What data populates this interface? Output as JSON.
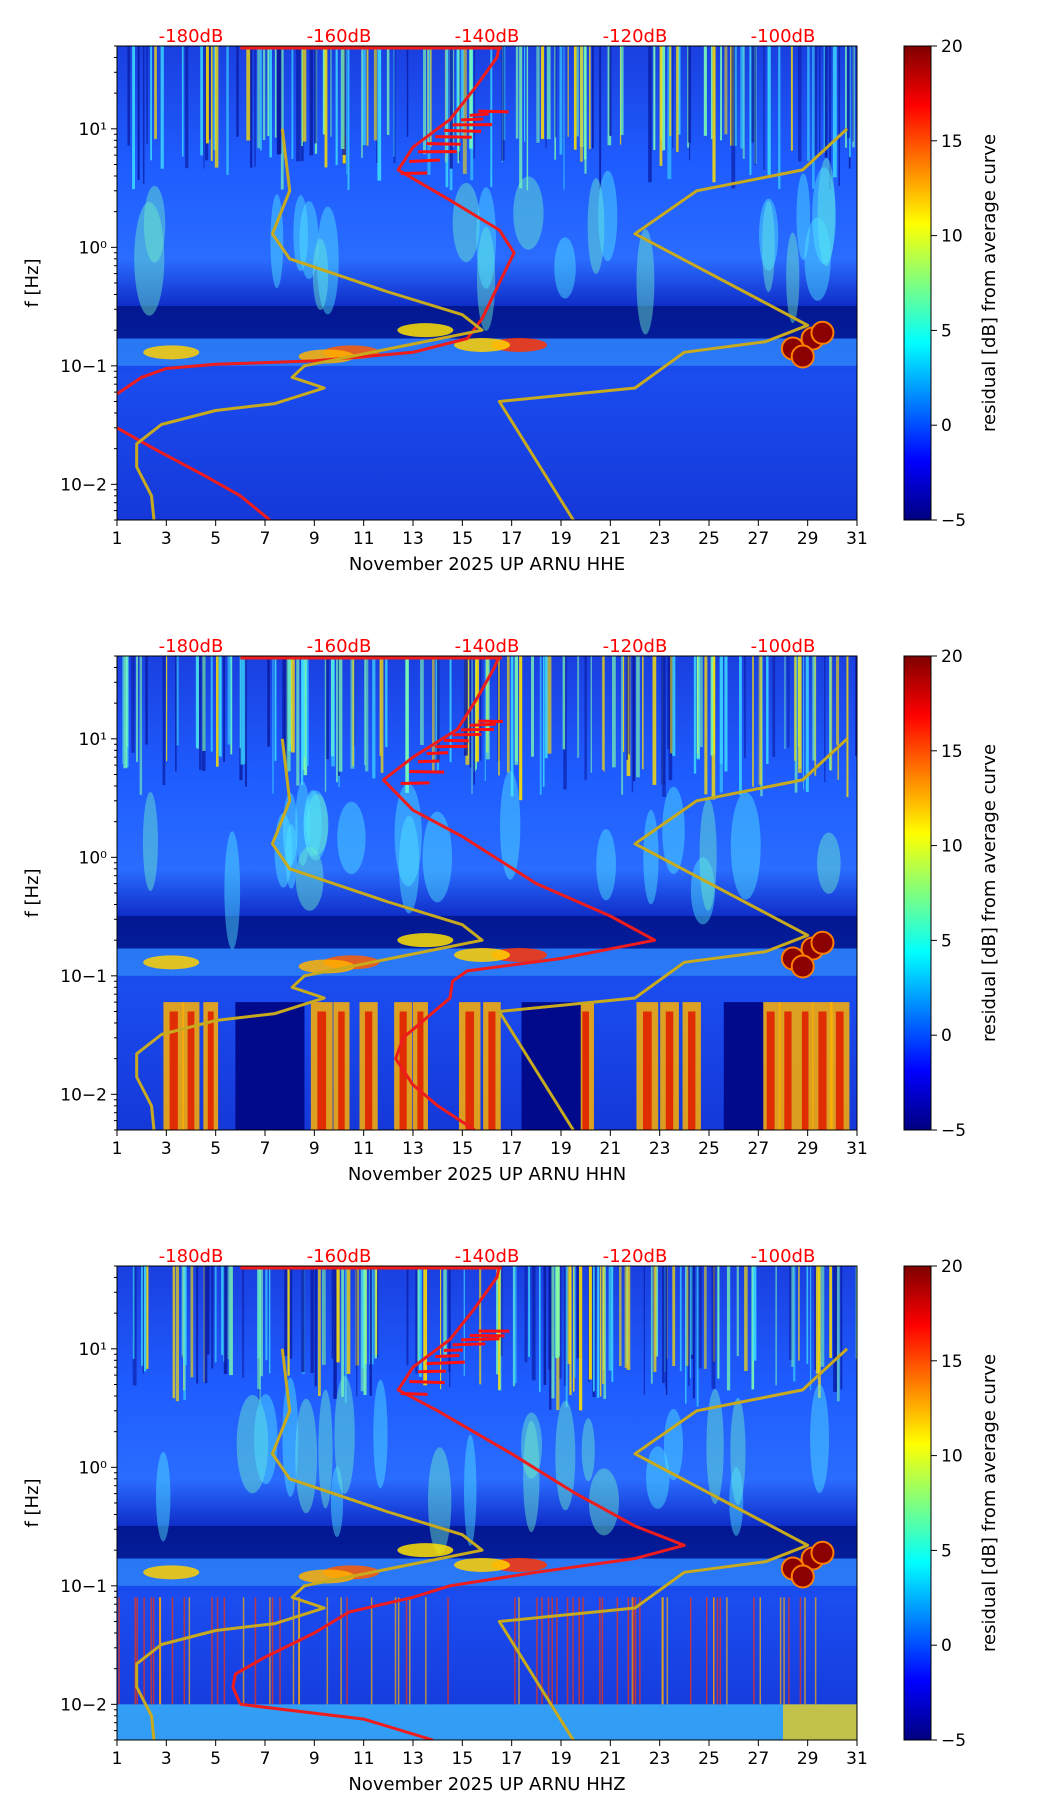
{
  "colorbar": {
    "label": "residual [dB] from average curve",
    "ticks": [
      -5,
      0,
      5,
      10,
      15,
      20
    ],
    "range": [
      -5,
      20
    ],
    "colormap": [
      "#00007f",
      "#0000ff",
      "#007fff",
      "#00ffff",
      "#7fff7f",
      "#ffff00",
      "#ff7f00",
      "#ff0000",
      "#7f0000"
    ]
  },
  "colors": {
    "top_labels": "#ff0000",
    "psd_curve": "#ee1c1c",
    "noise_model": "#c8aa1e",
    "background_low": "#00109a",
    "background_mid": "#1f55ff"
  },
  "chart_data": [
    {
      "type": "heatmap",
      "xlabel": "November 2025 UP ARNU  HHE",
      "ylabel": "f [Hz]",
      "xticks": [
        1,
        3,
        5,
        7,
        9,
        11,
        13,
        15,
        17,
        19,
        21,
        23,
        25,
        27,
        29,
        31
      ],
      "xlim": [
        1,
        31
      ],
      "ylim": [
        0.005,
        50
      ],
      "yscale": "log",
      "yticks": [
        "10−2",
        "10−1",
        "10⁰",
        "10¹"
      ],
      "top_labels": [
        "-180dB",
        "-160dB",
        "-140dB",
        "-120dB",
        "-100dB"
      ],
      "top_label_positions": [
        4,
        10,
        16,
        22,
        28
      ],
      "series": [
        {
          "color": "red",
          "points": [
            [
              1,
              0.058
            ],
            [
              2,
              0.08
            ],
            [
              3,
              0.095
            ],
            [
              5,
              0.103
            ],
            [
              9,
              0.11
            ],
            [
              13,
              0.13
            ],
            [
              15.2,
              0.17
            ],
            [
              15.8,
              0.25
            ],
            [
              16.5,
              0.5
            ],
            [
              17.1,
              0.9
            ],
            [
              16.5,
              1.4
            ],
            [
              14.5,
              2.5
            ],
            [
              12.4,
              4.5
            ],
            [
              13,
              7
            ],
            [
              14.5,
              12
            ],
            [
              15.5,
              22
            ],
            [
              16.4,
              40
            ],
            [
              16.5,
              50
            ]
          ],
          "extra": [
            [
              1,
              0.03
            ],
            [
              2.5,
              0.02
            ],
            [
              4.5,
              0.012
            ],
            [
              6,
              0.008
            ],
            [
              7.2,
              0.005
            ]
          ]
        },
        {
          "color": "gold",
          "points": [
            [
              2.5,
              0.005
            ],
            [
              2.4,
              0.008
            ],
            [
              1.8,
              0.014
            ],
            [
              1.8,
              0.022
            ],
            [
              2.8,
              0.032
            ],
            [
              5,
              0.042
            ],
            [
              7.4,
              0.048
            ],
            [
              9.4,
              0.065
            ],
            [
              8.1,
              0.08
            ],
            [
              8.6,
              0.1
            ],
            [
              15.8,
              0.2
            ],
            [
              15,
              0.27
            ],
            [
              12,
              0.42
            ],
            [
              8,
              0.8
            ],
            [
              7.3,
              1.3
            ],
            [
              8,
              3
            ],
            [
              7.7,
              10
            ]
          ],
          "extra": [
            [
              19.5,
              0.005
            ],
            [
              16.5,
              0.05
            ],
            [
              22,
              0.065
            ],
            [
              24,
              0.13
            ],
            [
              27.3,
              0.16
            ],
            [
              29,
              0.22
            ],
            [
              22,
              1.3
            ],
            [
              24.5,
              3
            ],
            [
              28.8,
              4.5
            ],
            [
              30.6,
              10
            ]
          ]
        }
      ]
    },
    {
      "type": "heatmap",
      "xlabel": "November 2025 UP ARNU  HHN",
      "ylabel": "f [Hz]",
      "xticks": [
        1,
        3,
        5,
        7,
        9,
        11,
        13,
        15,
        17,
        19,
        21,
        23,
        25,
        27,
        29,
        31
      ],
      "xlim": [
        1,
        31
      ],
      "ylim": [
        0.005,
        50
      ],
      "yscale": "log",
      "yticks": [
        "10−2",
        "10−1",
        "10⁰",
        "10¹"
      ],
      "top_labels": [
        "-180dB",
        "-160dB",
        "-140dB",
        "-120dB",
        "-100dB"
      ],
      "top_label_positions": [
        4,
        10,
        16,
        22,
        28
      ],
      "series": [
        {
          "color": "red",
          "points": [
            [
              15.5,
              0.005
            ],
            [
              14,
              0.008
            ],
            [
              13,
              0.012
            ],
            [
              12.3,
              0.02
            ],
            [
              12.6,
              0.03
            ],
            [
              13.6,
              0.045
            ],
            [
              14.5,
              0.065
            ],
            [
              14.6,
              0.09
            ],
            [
              15.2,
              0.11
            ],
            [
              19,
              0.14
            ],
            [
              22.8,
              0.2
            ],
            [
              21,
              0.32
            ],
            [
              18,
              0.6
            ],
            [
              15,
              1.5
            ],
            [
              13,
              2.5
            ],
            [
              11.8,
              4.5
            ],
            [
              13,
              7
            ],
            [
              14.8,
              12
            ],
            [
              15.6,
              22
            ],
            [
              16.3,
              40
            ],
            [
              16.5,
              50
            ]
          ],
          "extra": []
        },
        {
          "color": "gold",
          "points": [
            [
              2.5,
              0.005
            ],
            [
              2.4,
              0.008
            ],
            [
              1.8,
              0.014
            ],
            [
              1.8,
              0.022
            ],
            [
              2.8,
              0.032
            ],
            [
              5,
              0.042
            ],
            [
              7.4,
              0.048
            ],
            [
              9.4,
              0.065
            ],
            [
              8.1,
              0.08
            ],
            [
              8.6,
              0.1
            ],
            [
              15.8,
              0.2
            ],
            [
              15,
              0.27
            ],
            [
              12,
              0.42
            ],
            [
              8,
              0.8
            ],
            [
              7.3,
              1.3
            ],
            [
              8,
              3
            ],
            [
              7.7,
              10
            ]
          ],
          "extra": [
            [
              19.5,
              0.005
            ],
            [
              16.5,
              0.05
            ],
            [
              22,
              0.065
            ],
            [
              24,
              0.13
            ],
            [
              27.3,
              0.16
            ],
            [
              29,
              0.22
            ],
            [
              22,
              1.3
            ],
            [
              24.5,
              3
            ],
            [
              28.8,
              4.5
            ],
            [
              30.6,
              10
            ]
          ]
        }
      ]
    },
    {
      "type": "heatmap",
      "xlabel": "November 2025 UP ARNU  HHZ",
      "ylabel": "f [Hz]",
      "xticks": [
        1,
        3,
        5,
        7,
        9,
        11,
        13,
        15,
        17,
        19,
        21,
        23,
        25,
        27,
        29,
        31
      ],
      "xlim": [
        1,
        31
      ],
      "ylim": [
        0.005,
        50
      ],
      "yscale": "log",
      "yticks": [
        "10−2",
        "10−1",
        "10⁰",
        "10¹"
      ],
      "top_labels": [
        "-180dB",
        "-160dB",
        "-140dB",
        "-120dB",
        "-100dB"
      ],
      "top_label_positions": [
        4,
        10,
        16,
        22,
        28
      ],
      "series": [
        {
          "color": "red",
          "points": [
            [
              6,
              0.01
            ],
            [
              5.7,
              0.014
            ],
            [
              5.8,
              0.018
            ],
            [
              7,
              0.025
            ],
            [
              9,
              0.04
            ],
            [
              10.4,
              0.06
            ],
            [
              13,
              0.08
            ],
            [
              14.5,
              0.1
            ],
            [
              18,
              0.13
            ],
            [
              22,
              0.17
            ],
            [
              24,
              0.22
            ],
            [
              22,
              0.32
            ],
            [
              19.6,
              0.6
            ],
            [
              17,
              1.3
            ],
            [
              14,
              3
            ],
            [
              12.4,
              4.5
            ],
            [
              13,
              7
            ],
            [
              14.5,
              12
            ],
            [
              15.5,
              22
            ],
            [
              16.4,
              40
            ],
            [
              16.5,
              50
            ]
          ],
          "extra": [
            [
              6,
              0.01
            ],
            [
              11,
              0.0075
            ],
            [
              13.8,
              0.005
            ]
          ]
        },
        {
          "color": "gold",
          "points": [
            [
              2.5,
              0.005
            ],
            [
              2.4,
              0.008
            ],
            [
              1.8,
              0.014
            ],
            [
              1.8,
              0.022
            ],
            [
              2.8,
              0.032
            ],
            [
              5,
              0.042
            ],
            [
              7.4,
              0.048
            ],
            [
              9.4,
              0.065
            ],
            [
              8.1,
              0.08
            ],
            [
              8.6,
              0.1
            ],
            [
              15.8,
              0.2
            ],
            [
              15,
              0.27
            ],
            [
              12,
              0.42
            ],
            [
              8,
              0.8
            ],
            [
              7.3,
              1.3
            ],
            [
              8,
              3
            ],
            [
              7.7,
              10
            ]
          ],
          "extra": [
            [
              19.5,
              0.005
            ],
            [
              16.5,
              0.05
            ],
            [
              22,
              0.065
            ],
            [
              24,
              0.13
            ],
            [
              27.3,
              0.16
            ],
            [
              29,
              0.22
            ],
            [
              22,
              1.3
            ],
            [
              24.5,
              3
            ],
            [
              28.8,
              4.5
            ],
            [
              30.6,
              10
            ]
          ]
        }
      ]
    }
  ]
}
